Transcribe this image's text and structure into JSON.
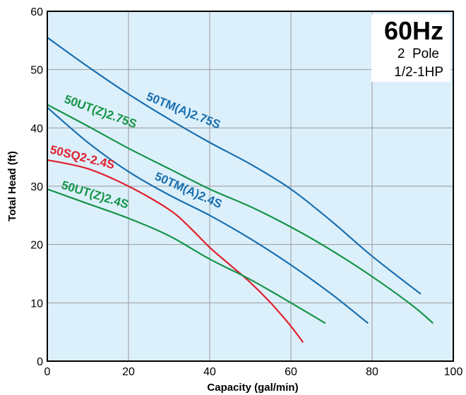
{
  "chart_data": {
    "type": "line",
    "title": "",
    "xlabel": "Capacity (gal/min)",
    "ylabel": "Total Head (ft)",
    "xlim": [
      0,
      100
    ],
    "ylim": [
      0,
      60
    ],
    "x_ticks": [
      0,
      20,
      40,
      60,
      80,
      100
    ],
    "y_ticks": [
      0,
      10,
      20,
      30,
      40,
      50,
      60
    ],
    "grid": true,
    "legend": "none (curves labeled inline)",
    "info_box": {
      "frequency": "60Hz",
      "poles": "2  Pole",
      "power": "1/2-1HP"
    },
    "colors": {
      "background": "#dcf0fb",
      "blue": "#1a6fb0",
      "green": "#159447",
      "red": "#e0202e",
      "grid": "#9a9a9a"
    },
    "series": [
      {
        "name": "50TM(A)2.75S",
        "color": "#1a6fb0",
        "x": [
          0,
          10,
          20,
          30,
          40,
          50,
          60,
          70,
          80,
          92
        ],
        "y": [
          55.5,
          50.5,
          45.8,
          41.5,
          37.5,
          33.8,
          29.5,
          24,
          18,
          11.5
        ]
      },
      {
        "name": "50UT(Z)2.75S",
        "color": "#159447",
        "x": [
          0,
          10,
          20,
          30,
          40,
          50,
          60,
          70,
          80,
          90,
          95
        ],
        "y": [
          44,
          40.3,
          36.5,
          33,
          29.5,
          26.5,
          23,
          19,
          14.5,
          9.5,
          6.5
        ]
      },
      {
        "name": "50TM(A)2.4S",
        "color": "#1a6fb0",
        "x": [
          0,
          10,
          20,
          30,
          40,
          50,
          60,
          70,
          79
        ],
        "y": [
          43.5,
          37.5,
          32.5,
          28.5,
          25,
          21,
          16.5,
          11.5,
          6.5
        ]
      },
      {
        "name": "50SQ2-2.4S",
        "color": "#e0202e",
        "x": [
          0,
          10,
          20,
          30,
          35,
          40,
          45,
          50,
          55,
          60,
          63
        ],
        "y": [
          34.5,
          33,
          30,
          26,
          23,
          19.5,
          16.5,
          13.5,
          10,
          6,
          3.2
        ]
      },
      {
        "name": "50UT(Z)2.4S",
        "color": "#159447",
        "x": [
          0,
          10,
          20,
          30,
          40,
          50,
          60,
          68.5
        ],
        "y": [
          29.5,
          27,
          24.5,
          21.5,
          17.5,
          14,
          10,
          6.5
        ]
      }
    ],
    "labels": [
      {
        "text": "50TM(A)2.75S",
        "color": "#1a6fb0"
      },
      {
        "text": "50UT(Z)2.75S",
        "color": "#159447"
      },
      {
        "text": "50TM(A)2.4S",
        "color": "#1a6fb0"
      },
      {
        "text": "50SQ2-2.4S",
        "color": "#e0202e"
      },
      {
        "text": "50UT(Z)2.4S",
        "color": "#159447"
      }
    ]
  }
}
